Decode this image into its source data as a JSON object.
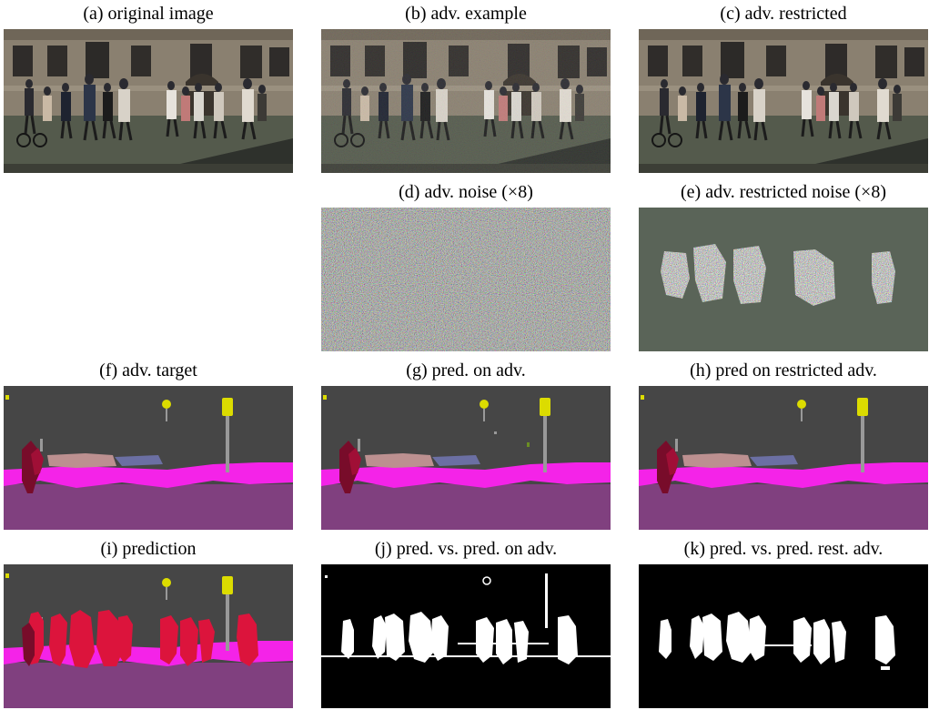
{
  "figure": {
    "panels": {
      "a": {
        "caption": "(a) original image"
      },
      "b": {
        "caption": "(b) adv. example"
      },
      "c": {
        "caption": "(c) adv. restricted"
      },
      "d": {
        "caption": "(d) adv. noise (×8)"
      },
      "e": {
        "caption": "(e) adv. restricted noise (×8)"
      },
      "f": {
        "caption": "(f) adv. target"
      },
      "g": {
        "caption": "(g) pred. on adv."
      },
      "h": {
        "caption": "(h) pred on restricted adv."
      },
      "i": {
        "caption": "(i) prediction"
      },
      "j": {
        "caption": "(j) pred. vs. pred. on adv."
      },
      "k": {
        "caption": "(k) pred. vs. pred. rest. adv."
      }
    }
  }
}
